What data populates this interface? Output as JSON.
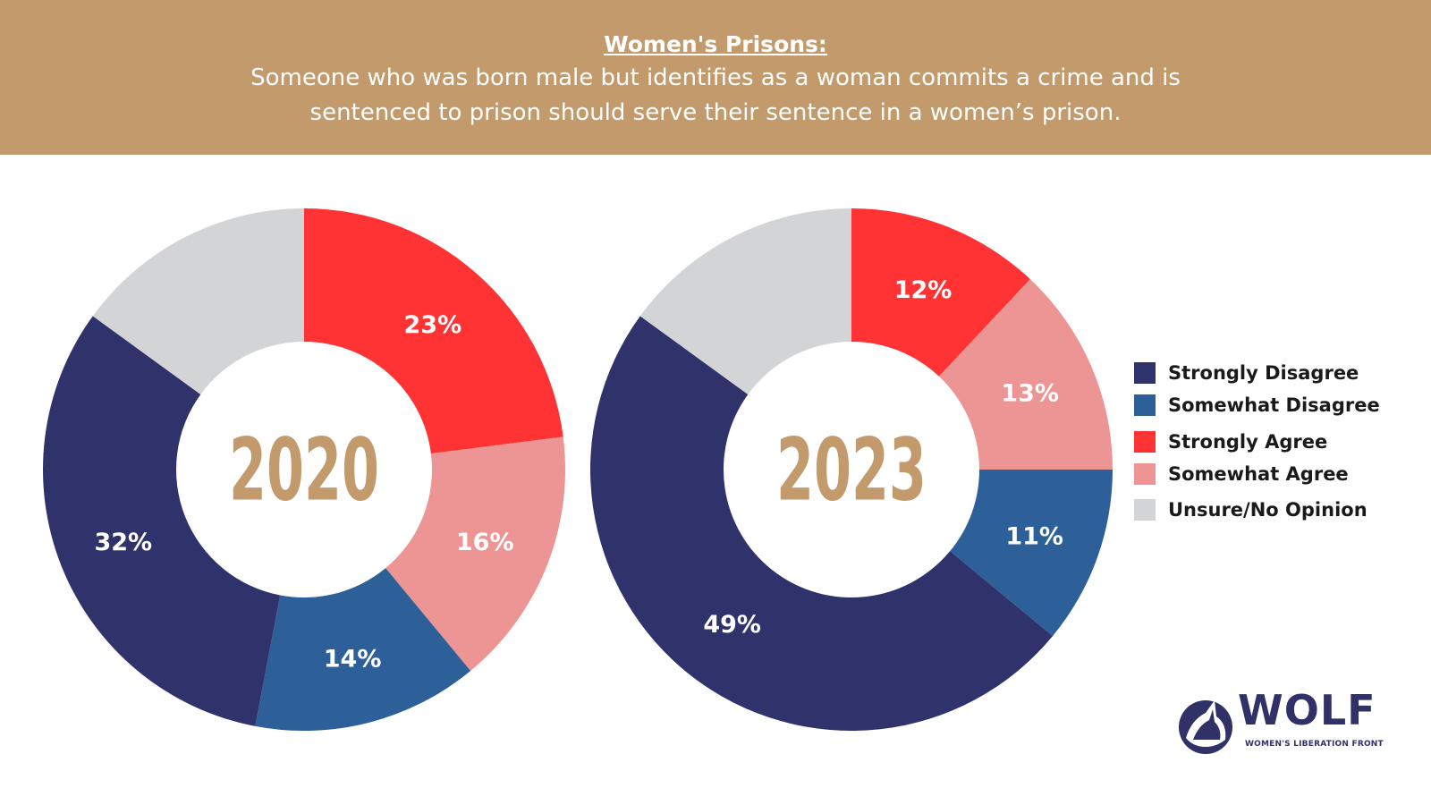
{
  "header": {
    "title": "Women's Prisons:",
    "line1": "Someone who was born male but identifies as a woman commits a crime and is",
    "line2": "sentenced to prison should serve their sentence in a women’s prison."
  },
  "colors": {
    "banner": "#c29a6c",
    "year": "#c29a6c",
    "Strongly Disagree": "#30336b",
    "Somewhat Disagree": "#2d5f98",
    "Strongly Agree": "#ff3334",
    "Somewhat Agree": "#ed9494",
    "Unsure/No Opinion": "#d3d4d6"
  },
  "chart_data": [
    {
      "type": "pie",
      "donut": true,
      "center_label": "2020",
      "slices": [
        {
          "name": "Strongly Agree",
          "value": 23,
          "label": "23%"
        },
        {
          "name": "Somewhat Agree",
          "value": 16,
          "label": "16%"
        },
        {
          "name": "Somewhat Disagree",
          "value": 14,
          "label": "14%"
        },
        {
          "name": "Strongly Disagree",
          "value": 32,
          "label": "32%"
        },
        {
          "name": "Unsure/No Opinion",
          "value": 15,
          "label": ""
        }
      ]
    },
    {
      "type": "pie",
      "donut": true,
      "center_label": "2023",
      "slices": [
        {
          "name": "Strongly Agree",
          "value": 12,
          "label": "12%"
        },
        {
          "name": "Somewhat Agree",
          "value": 13,
          "label": "13%"
        },
        {
          "name": "Somewhat Disagree",
          "value": 11,
          "label": "11%"
        },
        {
          "name": "Strongly Disagree",
          "value": 49,
          "label": "49%"
        },
        {
          "name": "Unsure/No Opinion",
          "value": 15,
          "label": ""
        }
      ]
    }
  ],
  "legend": {
    "placement": "right",
    "items": [
      "Strongly Disagree",
      "Somewhat Disagree",
      "Strongly Agree",
      "Somewhat Agree",
      "Unsure/No Opinion"
    ]
  },
  "logo": {
    "text": "WOLF",
    "subtitle": "WOMEN'S LIBERATION FRONT"
  }
}
